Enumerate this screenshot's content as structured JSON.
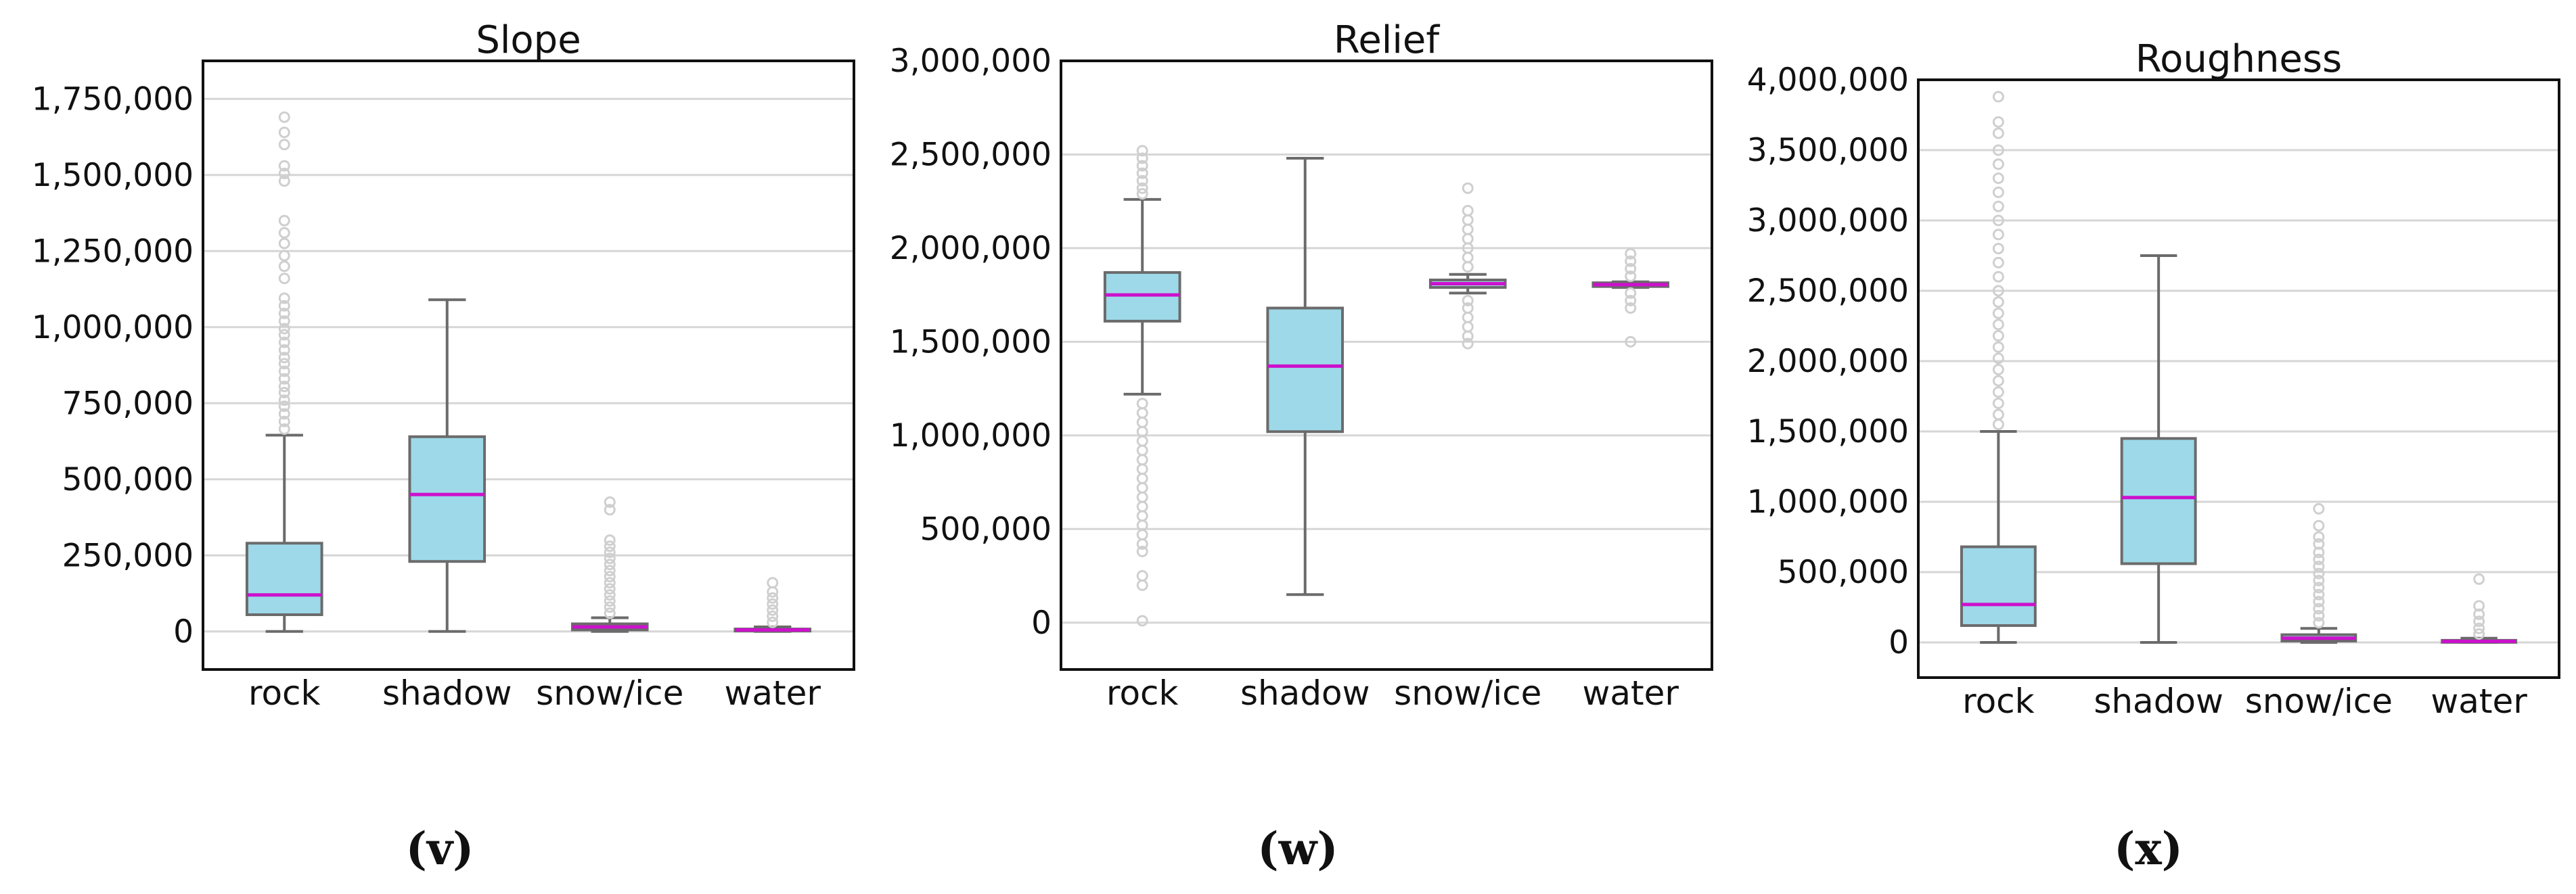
{
  "colors": {
    "box_fill": "#9dd9e8",
    "box_edge": "#6b6b6b",
    "median": "#cc11cc",
    "whisker": "#6b6b6b",
    "outlier": "#cfcfcf",
    "grid": "#d6d6d6",
    "frame": "#111111"
  },
  "chart_data": [
    {
      "type": "box",
      "panel_label": "(v)",
      "title": "Slope",
      "categories": [
        "rock",
        "shadow",
        "snow/ice",
        "water"
      ],
      "ylim": [
        -125000,
        1875000
      ],
      "yticks": [
        0,
        250000,
        500000,
        750000,
        1000000,
        1250000,
        1500000,
        1750000
      ],
      "ytick_labels": [
        "0",
        "250,000",
        "500,000",
        "750,000",
        "1,000,000",
        "1,250,000",
        "1,500,000",
        "1,750,000"
      ],
      "grid": "horizontal",
      "boxes": [
        {
          "category": "rock",
          "whisker_low": 0,
          "q1": 55000,
          "median": 120000,
          "q3": 290000,
          "whisker_high": 645000,
          "outliers": [
            665000,
            690000,
            715000,
            740000,
            760000,
            785000,
            805000,
            830000,
            855000,
            880000,
            900000,
            925000,
            950000,
            975000,
            995000,
            1020000,
            1045000,
            1070000,
            1095000,
            1160000,
            1200000,
            1235000,
            1275000,
            1310000,
            1350000,
            1480000,
            1505000,
            1530000,
            1600000,
            1640000,
            1690000
          ]
        },
        {
          "category": "shadow",
          "whisker_low": 0,
          "q1": 230000,
          "median": 450000,
          "q3": 640000,
          "whisker_high": 1090000,
          "outliers": []
        },
        {
          "category": "snow/ice",
          "whisker_low": 0,
          "q1": 5000,
          "median": 15000,
          "q3": 25000,
          "whisker_high": 45000,
          "outliers": [
            60000,
            80000,
            100000,
            120000,
            140000,
            160000,
            180000,
            200000,
            220000,
            240000,
            260000,
            280000,
            300000,
            400000,
            425000
          ]
        },
        {
          "category": "water",
          "whisker_low": 0,
          "q1": 3000,
          "median": 5000,
          "q3": 8000,
          "whisker_high": 15000,
          "outliers": [
            30000,
            50000,
            70000,
            90000,
            110000,
            130000,
            160000
          ]
        }
      ]
    },
    {
      "type": "box",
      "panel_label": "(w)",
      "title": "Relief",
      "categories": [
        "rock",
        "shadow",
        "snow/ice",
        "water"
      ],
      "ylim": [
        -250000,
        3000000
      ],
      "yticks": [
        0,
        500000,
        1000000,
        1500000,
        2000000,
        2500000,
        3000000
      ],
      "ytick_labels": [
        "0",
        "500,000",
        "1,000,000",
        "1,500,000",
        "2,000,000",
        "2,500,000",
        "3,000,000"
      ],
      "grid": "horizontal",
      "boxes": [
        {
          "category": "rock",
          "whisker_low": 1220000,
          "q1": 1610000,
          "median": 1750000,
          "q3": 1870000,
          "whisker_high": 2260000,
          "outliers": [
            10000,
            200000,
            250000,
            380000,
            420000,
            470000,
            520000,
            570000,
            620000,
            670000,
            720000,
            770000,
            820000,
            870000,
            920000,
            970000,
            1020000,
            1070000,
            1120000,
            1170000,
            2290000,
            2320000,
            2360000,
            2400000,
            2440000,
            2480000,
            2520000
          ]
        },
        {
          "category": "shadow",
          "whisker_low": 150000,
          "q1": 1020000,
          "median": 1370000,
          "q3": 1680000,
          "whisker_high": 2480000,
          "outliers": []
        },
        {
          "category": "snow/ice",
          "whisker_low": 1760000,
          "q1": 1790000,
          "median": 1810000,
          "q3": 1830000,
          "whisker_high": 1860000,
          "outliers": [
            1490000,
            1530000,
            1580000,
            1630000,
            1680000,
            1720000,
            1900000,
            1950000,
            2000000,
            2050000,
            2100000,
            2150000,
            2200000,
            2320000
          ]
        },
        {
          "category": "water",
          "whisker_low": 1790000,
          "q1": 1795000,
          "median": 1805000,
          "q3": 1815000,
          "whisker_high": 1820000,
          "outliers": [
            1500000,
            1680000,
            1720000,
            1760000,
            1850000,
            1890000,
            1930000,
            1970000
          ]
        }
      ]
    },
    {
      "type": "box",
      "panel_label": "(x)",
      "title": "Roughness",
      "categories": [
        "rock",
        "shadow",
        "snow/ice",
        "water"
      ],
      "ylim": [
        -250000,
        4000000
      ],
      "yticks": [
        0,
        500000,
        1000000,
        1500000,
        2000000,
        2500000,
        3000000,
        3500000,
        4000000
      ],
      "ytick_labels": [
        "0",
        "500,000",
        "1,000,000",
        "1,500,000",
        "2,000,000",
        "2,500,000",
        "3,000,000",
        "3,500,000",
        "4,000,000"
      ],
      "grid": "horizontal",
      "boxes": [
        {
          "category": "rock",
          "whisker_low": 0,
          "q1": 120000,
          "median": 270000,
          "q3": 680000,
          "whisker_high": 1500000,
          "outliers": [
            1550000,
            1620000,
            1700000,
            1780000,
            1860000,
            1940000,
            2020000,
            2100000,
            2180000,
            2260000,
            2340000,
            2420000,
            2500000,
            2600000,
            2700000,
            2800000,
            2900000,
            3000000,
            3100000,
            3200000,
            3300000,
            3400000,
            3500000,
            3620000,
            3700000,
            3880000
          ]
        },
        {
          "category": "shadow",
          "whisker_low": 0,
          "q1": 560000,
          "median": 1030000,
          "q3": 1450000,
          "whisker_high": 2750000,
          "outliers": []
        },
        {
          "category": "snow/ice",
          "whisker_low": 0,
          "q1": 10000,
          "median": 30000,
          "q3": 55000,
          "whisker_high": 100000,
          "outliers": [
            140000,
            190000,
            240000,
            290000,
            340000,
            390000,
            440000,
            490000,
            540000,
            590000,
            640000,
            700000,
            750000,
            830000,
            950000
          ]
        },
        {
          "category": "water",
          "whisker_low": 0,
          "q1": 3000,
          "median": 8000,
          "q3": 15000,
          "whisker_high": 30000,
          "outliers": [
            60000,
            100000,
            150000,
            200000,
            260000,
            450000
          ]
        }
      ]
    }
  ]
}
